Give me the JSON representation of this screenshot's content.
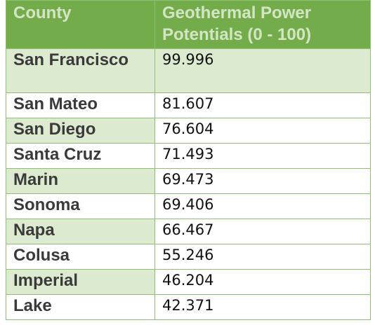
{
  "table": {
    "headers": [
      "County",
      "Geothermal Power Potentials (0 - 100)"
    ],
    "rows": [
      {
        "county": "San Francisco",
        "value": "99.996"
      },
      {
        "county": "San Mateo",
        "value": "81.607"
      },
      {
        "county": "San Diego",
        "value": "76.604"
      },
      {
        "county": "Santa Cruz",
        "value": "71.493"
      },
      {
        "county": "Marin",
        "value": "69.473"
      },
      {
        "county": "Sonoma",
        "value": "69.406"
      },
      {
        "county": "Napa",
        "value": "66.467"
      },
      {
        "county": "Colusa",
        "value": "55.246"
      },
      {
        "county": "Imperial",
        "value": "46.204"
      },
      {
        "county": "Lake",
        "value": "42.371"
      }
    ]
  },
  "colors": {
    "header_bg": "#74ac4c",
    "header_text": "#d3e6c4",
    "band_bg": "#dcebd0",
    "border": "#8fbf72"
  }
}
